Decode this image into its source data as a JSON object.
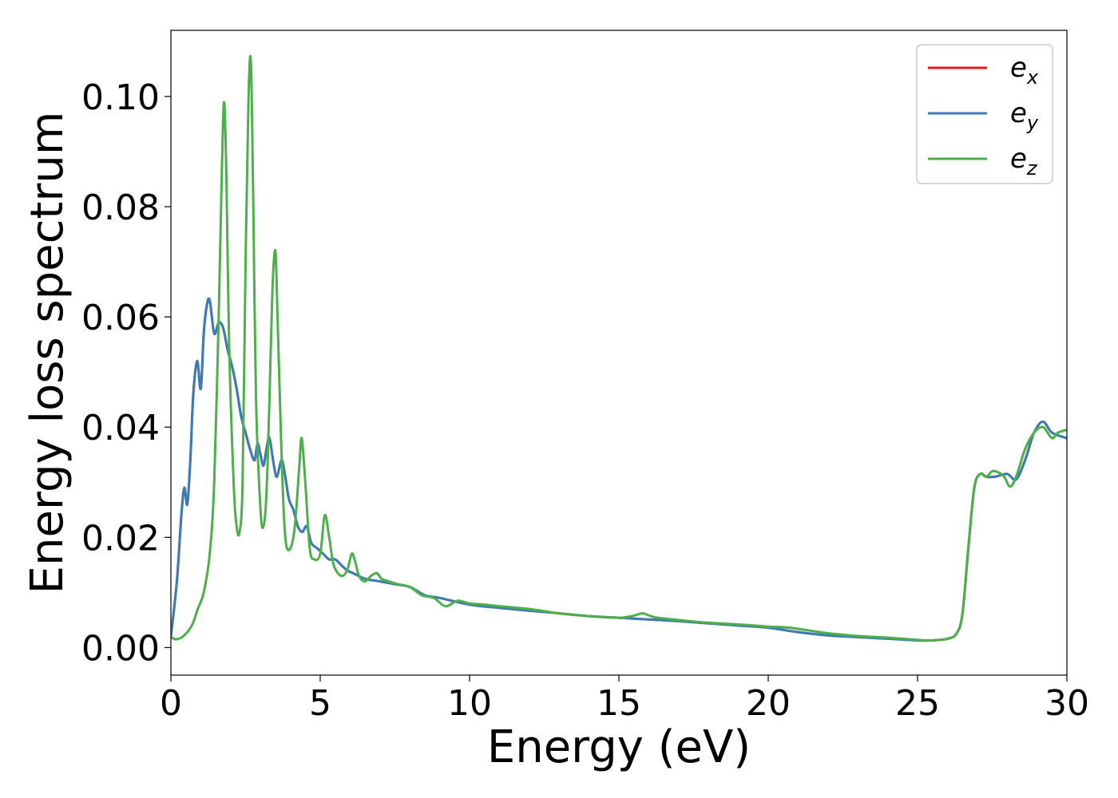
{
  "chart_data": {
    "type": "line",
    "title": "",
    "xlabel": "Energy (eV)",
    "ylabel": "Energy loss spectrum",
    "xlim": [
      0,
      30
    ],
    "ylim": [
      -0.005,
      0.112
    ],
    "xticks": [
      0,
      5,
      10,
      15,
      20,
      25,
      30
    ],
    "xtick_labels": [
      "0",
      "5",
      "10",
      "15",
      "20",
      "25",
      "30"
    ],
    "yticks": [
      0.0,
      0.02,
      0.04,
      0.06,
      0.08,
      0.1
    ],
    "ytick_labels": [
      "0.00",
      "0.02",
      "0.04",
      "0.06",
      "0.08",
      "0.10"
    ],
    "grid": false,
    "legend_position": "top-right",
    "series": [
      {
        "name": "e",
        "subscript": "x",
        "color": "#e41a1c",
        "x": [
          0,
          0.2,
          0.35,
          0.45,
          0.55,
          0.65,
          0.75,
          0.88,
          1.0,
          1.1,
          1.2,
          1.3,
          1.45,
          1.6,
          1.75,
          1.9,
          2.05,
          2.2,
          2.35,
          2.5,
          2.65,
          2.8,
          2.9,
          3.0,
          3.1,
          3.2,
          3.3,
          3.45,
          3.55,
          3.7,
          3.8,
          3.95,
          4.1,
          4.25,
          4.4,
          4.55,
          4.7,
          4.9,
          5.1,
          5.3,
          5.5,
          5.7,
          5.9,
          6.1,
          6.5,
          7.0,
          7.5,
          8.0,
          8.5,
          9.0,
          10.0,
          11.0,
          12.0,
          13.0,
          14.0,
          15.0,
          16.0,
          17.0,
          18.0,
          19.0,
          20.0,
          21.0,
          22.0,
          23.0,
          24.0,
          25.0,
          25.5,
          26.0,
          26.3,
          26.5,
          26.7,
          26.9,
          27.1,
          27.3,
          27.6,
          28.0,
          28.3,
          28.6,
          28.9,
          29.2,
          29.5,
          30.0
        ],
        "y": [
          0.002,
          0.012,
          0.024,
          0.029,
          0.026,
          0.034,
          0.046,
          0.052,
          0.047,
          0.057,
          0.062,
          0.063,
          0.057,
          0.059,
          0.058,
          0.054,
          0.051,
          0.047,
          0.042,
          0.039,
          0.036,
          0.034,
          0.037,
          0.035,
          0.033,
          0.036,
          0.038,
          0.033,
          0.031,
          0.034,
          0.032,
          0.027,
          0.025,
          0.022,
          0.021,
          0.022,
          0.019,
          0.018,
          0.017,
          0.016,
          0.016,
          0.015,
          0.014,
          0.0135,
          0.0125,
          0.012,
          0.0115,
          0.011,
          0.0095,
          0.009,
          0.0078,
          0.0072,
          0.0067,
          0.0062,
          0.0057,
          0.0054,
          0.0051,
          0.0048,
          0.0044,
          0.004,
          0.0036,
          0.0028,
          0.0022,
          0.0019,
          0.0016,
          0.0013,
          0.0013,
          0.0016,
          0.0025,
          0.006,
          0.018,
          0.029,
          0.0315,
          0.031,
          0.031,
          0.0315,
          0.0305,
          0.034,
          0.039,
          0.041,
          0.039,
          0.038
        ]
      },
      {
        "name": "e",
        "subscript": "y",
        "color": "#377eb8",
        "x": [
          0,
          0.2,
          0.35,
          0.45,
          0.55,
          0.65,
          0.75,
          0.88,
          1.0,
          1.1,
          1.2,
          1.3,
          1.45,
          1.6,
          1.75,
          1.9,
          2.05,
          2.2,
          2.35,
          2.5,
          2.65,
          2.8,
          2.9,
          3.0,
          3.1,
          3.2,
          3.3,
          3.45,
          3.55,
          3.7,
          3.8,
          3.95,
          4.1,
          4.25,
          4.4,
          4.55,
          4.7,
          4.9,
          5.1,
          5.3,
          5.5,
          5.7,
          5.9,
          6.1,
          6.5,
          7.0,
          7.5,
          8.0,
          8.5,
          9.0,
          10.0,
          11.0,
          12.0,
          13.0,
          14.0,
          15.0,
          16.0,
          17.0,
          18.0,
          19.0,
          20.0,
          21.0,
          22.0,
          23.0,
          24.0,
          25.0,
          25.5,
          26.0,
          26.3,
          26.5,
          26.7,
          26.9,
          27.1,
          27.3,
          27.6,
          28.0,
          28.3,
          28.6,
          28.9,
          29.2,
          29.5,
          30.0
        ],
        "y": [
          0.002,
          0.012,
          0.024,
          0.029,
          0.026,
          0.034,
          0.046,
          0.052,
          0.047,
          0.057,
          0.062,
          0.063,
          0.057,
          0.059,
          0.058,
          0.054,
          0.051,
          0.047,
          0.042,
          0.039,
          0.036,
          0.034,
          0.037,
          0.035,
          0.033,
          0.036,
          0.038,
          0.033,
          0.031,
          0.034,
          0.032,
          0.027,
          0.025,
          0.022,
          0.021,
          0.022,
          0.019,
          0.018,
          0.017,
          0.016,
          0.016,
          0.015,
          0.014,
          0.0135,
          0.0125,
          0.012,
          0.0115,
          0.011,
          0.0095,
          0.009,
          0.0078,
          0.0072,
          0.0067,
          0.0062,
          0.0057,
          0.0054,
          0.0051,
          0.0048,
          0.0044,
          0.004,
          0.0036,
          0.0028,
          0.0022,
          0.0019,
          0.0016,
          0.0013,
          0.0013,
          0.0016,
          0.0025,
          0.006,
          0.018,
          0.029,
          0.0315,
          0.031,
          0.031,
          0.0315,
          0.0305,
          0.034,
          0.039,
          0.041,
          0.039,
          0.038
        ]
      },
      {
        "name": "e",
        "subscript": "z",
        "color": "#4daf4a",
        "x": [
          0,
          0.15,
          0.4,
          0.7,
          0.9,
          1.1,
          1.3,
          1.45,
          1.6,
          1.7,
          1.78,
          1.86,
          1.95,
          2.1,
          2.2,
          2.3,
          2.4,
          2.5,
          2.6,
          2.68,
          2.76,
          2.85,
          3.0,
          3.1,
          3.2,
          3.3,
          3.4,
          3.5,
          3.57,
          3.65,
          3.75,
          3.85,
          4.0,
          4.15,
          4.3,
          4.38,
          4.5,
          4.65,
          4.8,
          5.0,
          5.15,
          5.3,
          5.45,
          5.7,
          5.9,
          6.05,
          6.15,
          6.3,
          6.5,
          6.7,
          6.9,
          7.05,
          7.3,
          7.6,
          8.0,
          8.4,
          8.8,
          9.2,
          9.6,
          10.0,
          10.5,
          11.0,
          12.0,
          13.0,
          14.0,
          15.0,
          15.5,
          15.8,
          16.2,
          17.0,
          18.0,
          19.0,
          20.0,
          20.5,
          21.0,
          22.0,
          23.0,
          24.0,
          25.0,
          25.5,
          26.0,
          26.3,
          26.5,
          26.7,
          26.9,
          27.1,
          27.3,
          27.5,
          27.7,
          27.9,
          28.1,
          28.3,
          28.6,
          28.9,
          29.2,
          29.5,
          29.7,
          30.0
        ],
        "y": [
          0.002,
          0.0015,
          0.002,
          0.004,
          0.007,
          0.01,
          0.017,
          0.03,
          0.06,
          0.085,
          0.099,
          0.085,
          0.055,
          0.03,
          0.022,
          0.021,
          0.03,
          0.07,
          0.1,
          0.106,
          0.08,
          0.045,
          0.025,
          0.022,
          0.028,
          0.045,
          0.065,
          0.072,
          0.06,
          0.045,
          0.028,
          0.019,
          0.018,
          0.022,
          0.033,
          0.038,
          0.03,
          0.018,
          0.016,
          0.017,
          0.024,
          0.02,
          0.015,
          0.013,
          0.014,
          0.017,
          0.016,
          0.013,
          0.012,
          0.013,
          0.0135,
          0.0125,
          0.012,
          0.0115,
          0.011,
          0.0095,
          0.009,
          0.0075,
          0.0085,
          0.008,
          0.0078,
          0.0075,
          0.007,
          0.0062,
          0.0057,
          0.0054,
          0.0058,
          0.0062,
          0.0055,
          0.005,
          0.0045,
          0.0042,
          0.0038,
          0.0037,
          0.0034,
          0.0026,
          0.0021,
          0.0018,
          0.0014,
          0.0013,
          0.0016,
          0.0025,
          0.006,
          0.018,
          0.029,
          0.0315,
          0.031,
          0.032,
          0.0318,
          0.031,
          0.0292,
          0.031,
          0.036,
          0.039,
          0.04,
          0.038,
          0.039,
          0.0395
        ]
      }
    ]
  }
}
